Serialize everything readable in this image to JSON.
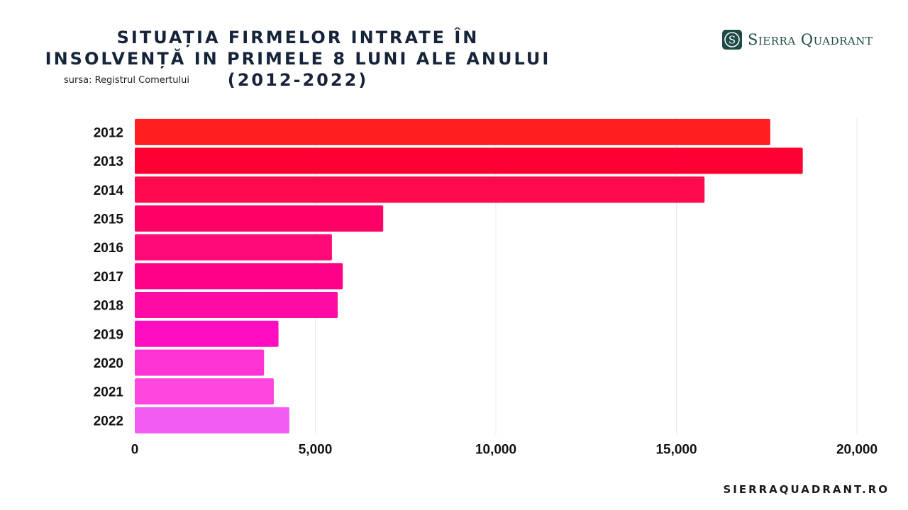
{
  "header": {
    "title": "SITUAȚIA FIRMELOR INTRATE ÎN INSOLVENȚĂ IN PRIMELE 8 LUNI ALE ANULUI (2012-2022)",
    "source": "sursa: Registrul Comertului"
  },
  "brand": {
    "logo_text": "Sierra Quadrant",
    "logo_letter": "S",
    "footer": "SIERRAQUADRANT.RO",
    "color": "#1d4a45"
  },
  "chart_data": {
    "type": "bar",
    "orientation": "horizontal",
    "title": "SITUAȚIA FIRMELOR INTRATE ÎN INSOLVENȚĂ IN PRIMELE 8 LUNI ALE ANULUI (2012-2022)",
    "xlabel": "",
    "ylabel": "",
    "categories": [
      "2012",
      "2013",
      "2014",
      "2015",
      "2016",
      "2017",
      "2018",
      "2019",
      "2020",
      "2021",
      "2022"
    ],
    "values": [
      17600,
      18500,
      15780,
      6880,
      5460,
      5760,
      5620,
      3980,
      3580,
      3850,
      4280
    ],
    "xlim": [
      0,
      20000
    ],
    "xticks": [
      0,
      5000,
      10000,
      15000,
      20000
    ],
    "xtick_labels": [
      "0",
      "5,000",
      "10,000",
      "15,000",
      "20,000"
    ],
    "grid": true,
    "colors": [
      "#ff1f1f",
      "#ff0033",
      "#ff0a4d",
      "#ff0066",
      "#ff0a77",
      "#ff0088",
      "#ff0aa5",
      "#ff0dc0",
      "#ff33d3",
      "#ff47e0",
      "#f25cf2"
    ]
  }
}
